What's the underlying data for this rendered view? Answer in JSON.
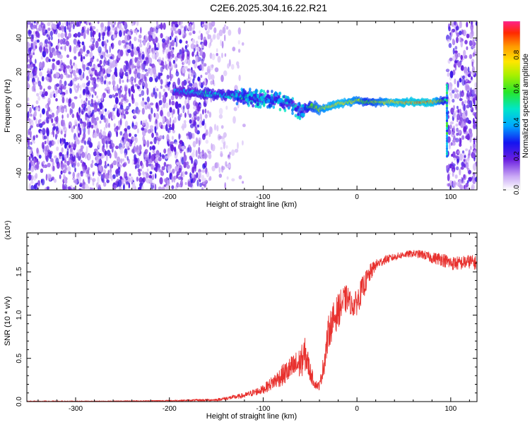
{
  "figure_title": "C2E6.2025.304.16.22.R21",
  "colors": {
    "signal_line": "#e8312e",
    "background_speckle": "#7a2ee6",
    "frame": "#000000"
  },
  "chart_data": [
    {
      "type": "heatmap",
      "title": "C2E6.2025.304.16.22.R21",
      "xlabel": "Height of straight line (km)",
      "ylabel": "Frequency (Hz)",
      "xlim": [
        -352,
        128
      ],
      "ylim": [
        -50,
        50
      ],
      "x_ticks": [
        -300,
        -200,
        -100,
        0,
        100
      ],
      "x_tick_labels": [
        "-300",
        "-200",
        "-100",
        "0",
        "100"
      ],
      "y_ticks": [
        -40,
        -20,
        0,
        20,
        40
      ],
      "y_tick_labels": [
        "-40",
        "-20",
        "0",
        "20",
        "40"
      ],
      "colorbar": {
        "label": "Normalized spectral amplitude",
        "range": [
          0,
          1
        ],
        "ticks": [
          0.0,
          0.2,
          0.4,
          0.6,
          0.8
        ],
        "tick_labels": [
          "0.0",
          "0.2",
          "0.4",
          "0.6",
          "0.8"
        ]
      },
      "ridge": {
        "description_values": "dominant frequency (Hz) vs height (km)",
        "x": [
          -195,
          -180,
          -160,
          -140,
          -120,
          -100,
          -85,
          -70,
          -60,
          -50,
          -40,
          -30,
          -20,
          -10,
          0,
          10,
          20,
          40,
          60,
          80,
          95
        ],
        "y": [
          8,
          8,
          7,
          6,
          5,
          4,
          3,
          1,
          -4,
          0,
          -2,
          -1,
          1,
          2,
          3,
          2,
          2,
          2,
          2,
          2,
          3
        ],
        "amplitude": [
          0.35,
          0.4,
          0.45,
          0.45,
          0.5,
          0.45,
          0.5,
          0.4,
          0.3,
          0.6,
          0.7,
          0.75,
          0.8,
          0.75,
          0.7,
          0.6,
          0.65,
          0.8,
          0.85,
          0.85,
          0.5
        ]
      },
      "noise_regions_km": [
        [
          -352,
          -160
        ],
        [
          96,
          128
        ]
      ]
    },
    {
      "type": "line",
      "xlabel": "Height of straight line (km)",
      "ylabel": "SNR (10 * v/v)",
      "y_scale_label": "(x10⁴)",
      "xlim": [
        -352,
        128
      ],
      "ylim": [
        0,
        1.95
      ],
      "x_ticks": [
        -300,
        -200,
        -100,
        0,
        100
      ],
      "x_tick_labels": [
        "-300",
        "-200",
        "-100",
        "0",
        "100"
      ],
      "y_ticks": [
        0.0,
        0.5,
        1.0,
        1.5
      ],
      "y_tick_labels": [
        "0.0",
        "0.5",
        "1.0",
        "1.5"
      ],
      "series": [
        {
          "name": "SNR",
          "x": [
            -352,
            -300,
            -200,
            -150,
            -120,
            -100,
            -90,
            -80,
            -70,
            -60,
            -55,
            -50,
            -45,
            -40,
            -35,
            -30,
            -25,
            -20,
            -15,
            -10,
            -5,
            0,
            5,
            10,
            15,
            20,
            30,
            40,
            50,
            60,
            70,
            80,
            90,
            100,
            110,
            120,
            128
          ],
          "y": [
            0.0,
            0.0,
            0.01,
            0.02,
            0.07,
            0.14,
            0.22,
            0.3,
            0.38,
            0.45,
            0.55,
            0.35,
            0.2,
            0.18,
            0.45,
            0.82,
            0.95,
            1.05,
            1.15,
            1.2,
            1.1,
            1.15,
            1.28,
            1.4,
            1.5,
            1.58,
            1.64,
            1.67,
            1.7,
            1.71,
            1.7,
            1.66,
            1.65,
            1.6,
            1.6,
            1.62,
            1.6
          ],
          "noise": [
            0.0,
            0.005,
            0.008,
            0.015,
            0.03,
            0.05,
            0.08,
            0.12,
            0.15,
            0.18,
            0.2,
            0.12,
            0.05,
            0.05,
            0.15,
            0.2,
            0.2,
            0.2,
            0.18,
            0.15,
            0.12,
            0.15,
            0.15,
            0.12,
            0.1,
            0.06,
            0.05,
            0.04,
            0.04,
            0.04,
            0.05,
            0.06,
            0.08,
            0.08,
            0.08,
            0.08,
            0.08
          ]
        }
      ]
    }
  ]
}
